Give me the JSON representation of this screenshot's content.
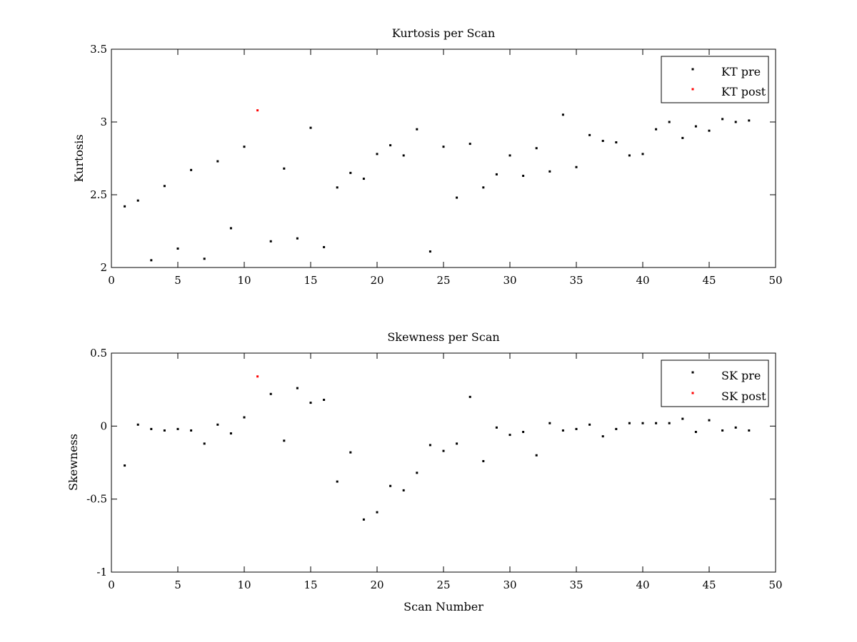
{
  "chart_data": [
    {
      "type": "scatter",
      "title": "Kurtosis per Scan",
      "xlabel": "",
      "ylabel": "Kurtosis",
      "xlim": [
        0,
        50
      ],
      "ylim": [
        2,
        3.5
      ],
      "xticks": [
        "0",
        "5",
        "10",
        "15",
        "20",
        "25",
        "30",
        "35",
        "40",
        "45",
        "50"
      ],
      "yticks": [
        "2",
        "2.5",
        "3",
        "3.5"
      ],
      "legend_position": "top-right",
      "grid": false,
      "series": [
        {
          "name": "KT pre",
          "color": "#000000",
          "x": [
            1,
            2,
            3,
            4,
            5,
            6,
            7,
            8,
            9,
            10,
            12,
            13,
            14,
            15,
            16,
            17,
            18,
            19,
            20,
            21,
            22,
            23,
            24,
            25,
            26,
            27,
            28,
            29,
            30,
            31,
            32,
            33,
            34,
            35,
            36,
            37,
            38,
            39,
            40,
            41,
            42,
            43,
            44,
            45,
            46,
            47,
            48
          ],
          "y": [
            2.42,
            2.46,
            2.05,
            2.56,
            2.13,
            2.67,
            2.06,
            2.73,
            2.27,
            2.83,
            2.18,
            2.68,
            2.2,
            2.96,
            2.14,
            2.55,
            2.65,
            2.61,
            2.78,
            2.84,
            2.77,
            2.95,
            2.11,
            2.83,
            2.48,
            2.85,
            2.55,
            2.64,
            2.77,
            2.63,
            2.82,
            2.66,
            3.05,
            2.69,
            2.91,
            2.87,
            2.86,
            2.77,
            2.78,
            2.95,
            3.0,
            2.89,
            2.97,
            2.94,
            3.02,
            3.0,
            3.01
          ]
        },
        {
          "name": "KT post",
          "color": "#ff0000",
          "x": [
            11
          ],
          "y": [
            3.08
          ]
        }
      ]
    },
    {
      "type": "scatter",
      "title": "Skewness per Scan",
      "xlabel": "Scan Number",
      "ylabel": "Skewness",
      "xlim": [
        0,
        50
      ],
      "ylim": [
        -1,
        0.5
      ],
      "xticks": [
        "0",
        "5",
        "10",
        "15",
        "20",
        "25",
        "30",
        "35",
        "40",
        "45",
        "50"
      ],
      "yticks": [
        "-1",
        "-0.5",
        "0",
        "0.5"
      ],
      "legend_position": "top-right",
      "grid": false,
      "series": [
        {
          "name": "SK pre",
          "color": "#000000",
          "x": [
            1,
            2,
            3,
            4,
            5,
            6,
            7,
            8,
            9,
            10,
            12,
            13,
            14,
            15,
            16,
            17,
            18,
            19,
            20,
            21,
            22,
            23,
            24,
            25,
            26,
            27,
            28,
            29,
            30,
            31,
            32,
            33,
            34,
            35,
            36,
            37,
            38,
            39,
            40,
            41,
            42,
            43,
            44,
            45,
            46,
            47,
            48
          ],
          "y": [
            -0.27,
            0.01,
            -0.02,
            -0.03,
            -0.02,
            -0.03,
            -0.12,
            0.01,
            -0.05,
            0.06,
            0.22,
            -0.1,
            0.26,
            0.16,
            0.18,
            -0.38,
            -0.18,
            -0.64,
            -0.59,
            -0.41,
            -0.44,
            -0.32,
            -0.13,
            -0.17,
            -0.12,
            0.2,
            -0.24,
            -0.01,
            -0.06,
            -0.04,
            -0.2,
            0.02,
            -0.03,
            -0.02,
            0.01,
            -0.07,
            -0.02,
            0.02,
            0.02,
            0.02,
            0.02,
            0.05,
            -0.04,
            0.04,
            -0.03,
            -0.01,
            -0.03
          ]
        },
        {
          "name": "SK post",
          "color": "#ff0000",
          "x": [
            11
          ],
          "y": [
            0.34
          ]
        }
      ]
    }
  ]
}
